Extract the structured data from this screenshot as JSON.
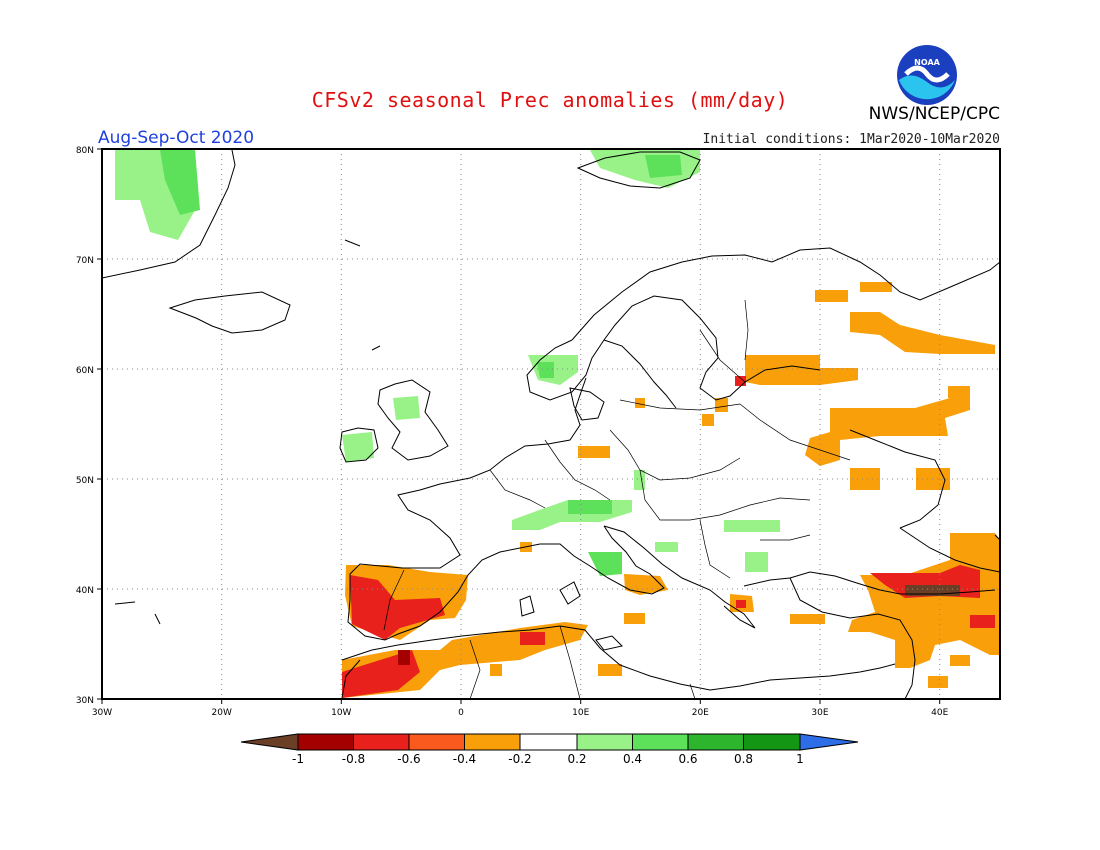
{
  "header": {
    "title": "CFSv2 seasonal Prec anomalies (mm/day)",
    "period": "Aug-Sep-Oct 2020",
    "initial_conditions": "Initial conditions: 1Mar2020-10Mar2020",
    "agency": "NWS/NCEP/CPC",
    "logo_text": "NOAA"
  },
  "map": {
    "lon_range": [
      -30,
      45
    ],
    "lat_range": [
      30,
      80
    ],
    "lon_ticks": [
      "30W",
      "20W",
      "10W",
      "0",
      "10E",
      "20E",
      "30E",
      "40E"
    ],
    "lat_ticks": [
      "80N",
      "70N",
      "60N",
      "50N",
      "40N",
      "30N"
    ],
    "gridlines": "dotted"
  },
  "colorbar": {
    "labels": [
      "-1",
      "-0.8",
      "-0.6",
      "-0.4",
      "-0.2",
      "0.2",
      "0.4",
      "0.6",
      "0.8",
      "1"
    ],
    "colors": [
      "#6b3e26",
      "#a50000",
      "#e8211c",
      "#fa5a1e",
      "#f99f0a",
      "#ffffff",
      "#98f288",
      "#5de05a",
      "#2eb52e",
      "#139613",
      "#2d6ee8"
    ]
  },
  "anomaly_regions": [
    {
      "name": "greenland-wet",
      "category": "0.4",
      "color": "#98f288"
    },
    {
      "name": "svalbard-wet",
      "category": "0.4",
      "color": "#98f288"
    },
    {
      "name": "ireland-wet",
      "category": "0.4",
      "color": "#98f288"
    },
    {
      "name": "norway-wet",
      "category": "0.4",
      "color": "#98f288"
    },
    {
      "name": "alps-wet",
      "category": "0.4",
      "color": "#98f288"
    },
    {
      "name": "iberia-dry",
      "category": "-0.6",
      "color": "#e8211c"
    },
    {
      "name": "north-africa-dry",
      "category": "-0.4",
      "color": "#f99f0a"
    },
    {
      "name": "russia-dry",
      "category": "-0.4",
      "color": "#f99f0a"
    },
    {
      "name": "turkey-caucasus-dry",
      "category": "-0.6",
      "color": "#e8211c"
    }
  ]
}
